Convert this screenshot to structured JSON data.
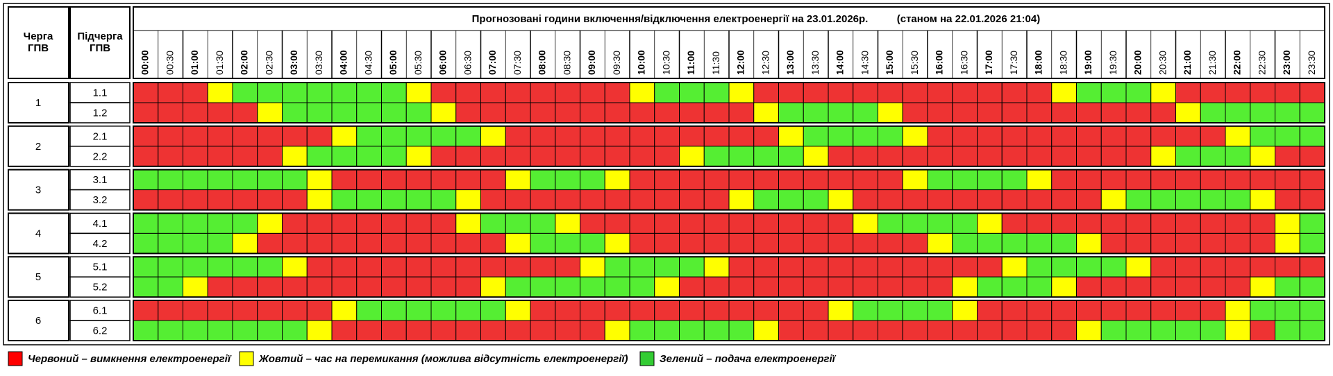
{
  "header": {
    "title": "Прогнозовані години включення/відключення електроенергії на 23.01.2026р.",
    "status": "(станом на 22.01.2026 21:04)",
    "col_queue": [
      "Черга",
      "ГПВ"
    ],
    "col_subqueue": [
      "Підчерга",
      "ГПВ"
    ],
    "times": [
      "00:00",
      "00:30",
      "01:00",
      "01:30",
      "02:00",
      "02:30",
      "03:00",
      "03:30",
      "04:00",
      "04:30",
      "05:00",
      "05:30",
      "06:00",
      "06:30",
      "07:00",
      "07:30",
      "08:00",
      "08:30",
      "09:00",
      "09:30",
      "10:00",
      "10:30",
      "11:00",
      "11:30",
      "12:00",
      "12:30",
      "13:00",
      "13:30",
      "14:00",
      "14:30",
      "15:00",
      "15:30",
      "16:00",
      "16:30",
      "17:00",
      "17:30",
      "18:00",
      "18:30",
      "19:00",
      "19:30",
      "20:00",
      "20:30",
      "21:00",
      "21:30",
      "22:00",
      "22:30",
      "23:00",
      "23:30"
    ]
  },
  "state_colors": {
    "R": "#ee3333",
    "Y": "#ffff00",
    "G": "#55ee33"
  },
  "groups": [
    {
      "label": "1",
      "subgroups": [
        {
          "label": "1.1",
          "hours": "RR RY GG GG GG GY RR RR RR RR YG GG YR RR RR RR RR RR RY GG GY RR RR RR"
        },
        {
          "label": "1.2",
          "hours": "RR RR RY GG GG GG YR RR RR RR RR RR RY GG GG YR RR RR RR RR RR YG GG GG"
        }
      ]
    },
    {
      "label": "2",
      "subgroups": [
        {
          "label": "2.1",
          "hours": "RR RR RR RR YG GG GG YR RR RR RR RR RR YG GG GY RR RR RR RR RR RR YG GG"
        },
        {
          "label": "2.2",
          "hours": "RR RR RR YG GG GY RR RR RR RR RR YG GG GY RR RR RR RR RR RR RY GG GY RR"
        }
      ]
    },
    {
      "label": "3",
      "subgroups": [
        {
          "label": "3.1",
          "hours": "GG GG GG GY RR RR RR RY GG GY RR RR RR RR RR RY GG GG YR RR RR RR RR RR"
        },
        {
          "label": "3.2",
          "hours": "RR RR RR RY GG GG GY RR RR RR RR RR YG GG YR RR RR RR RR RY GG GG GY RR"
        }
      ]
    },
    {
      "label": "4",
      "subgroups": [
        {
          "label": "4.1",
          "hours": "GG GG GY RR RR RR RY GG GY RR RR RR RR RR RY GG GG YR RR RR RR RR RR YG"
        },
        {
          "label": "4.2",
          "hours": "GG GG YR RR RR RR RR RY GG GY RR RR RR RR RR RR YG GG GG YR RR RR RR YG"
        }
      ]
    },
    {
      "label": "5",
      "subgroups": [
        {
          "label": "5.1",
          "hours": "GG GG GG YR RR RR RR RR RR YG GG GY RR RR RR RR RR RY GG GG YR RR RR RR"
        },
        {
          "label": "5.2",
          "hours": "GG YR RR RR RR RR RR YG GG GG GY RR RR RR RR RR RY GG GY RR RR RR RY GG"
        }
      ]
    },
    {
      "label": "6",
      "subgroups": [
        {
          "label": "6.1",
          "hours": "RR RR RR RR YG GG GG GY RR RR RR RR RR RR YG GG GY RR RR RR RR RR YG GG"
        },
        {
          "label": "6.2",
          "hours": "GG GG GG GY RR RR RR RR RR RY GG GG GY RR RR RR RR RR RR YG GG GG YR GG"
        }
      ]
    }
  ],
  "legend": [
    {
      "color": "#ff0000",
      "text": "Червоний – вимкнення електроенергії"
    },
    {
      "color": "#ffff00",
      "text": "Жовтий – час на перемикання (можлива відсутність електроенергії)"
    },
    {
      "color": "#33cc33",
      "text": "Зелений – подача електроенергії"
    }
  ]
}
